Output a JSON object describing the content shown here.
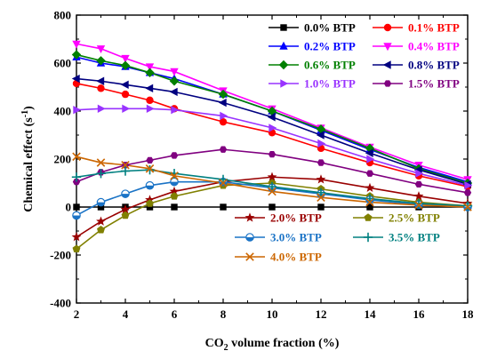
{
  "chart_data": {
    "type": "line",
    "xlabel": "CO2 volume fraction (%)",
    "ylabel": "Chemical effect (s-1)",
    "xlim": [
      2,
      18
    ],
    "ylim": [
      -400,
      800
    ],
    "xticks": [
      2,
      4,
      6,
      8,
      10,
      12,
      14,
      16,
      18
    ],
    "yticks": [
      -400,
      -200,
      0,
      200,
      400,
      600,
      800
    ],
    "x": [
      2,
      3,
      4,
      5,
      6,
      8,
      10,
      12,
      14,
      16,
      18
    ],
    "grid": false,
    "legend_position": "top-right and bottom-right",
    "series": [
      {
        "name": "0.0% BTP",
        "color": "#000000",
        "marker": "square",
        "values": [
          0,
          0,
          0,
          0,
          0,
          0,
          0,
          0,
          0,
          0,
          0
        ]
      },
      {
        "name": "0.1% BTP",
        "color": "#ff0000",
        "marker": "circle",
        "values": [
          515,
          495,
          470,
          445,
          410,
          355,
          310,
          245,
          185,
          130,
          85
        ]
      },
      {
        "name": "0.2% BTP",
        "color": "#0000ff",
        "marker": "triangle-up",
        "values": [
          625,
          600,
          585,
          560,
          535,
          470,
          400,
          320,
          240,
          165,
          105
        ]
      },
      {
        "name": "0.4% BTP",
        "color": "#ff00ff",
        "marker": "triangle-down",
        "values": [
          680,
          660,
          620,
          585,
          565,
          485,
          410,
          330,
          250,
          175,
          115
        ]
      },
      {
        "name": "0.6% BTP",
        "color": "#008000",
        "marker": "diamond",
        "values": [
          635,
          610,
          590,
          560,
          525,
          470,
          400,
          325,
          245,
          160,
          100
        ]
      },
      {
        "name": "0.8% BTP",
        "color": "#000080",
        "marker": "triangle-left",
        "values": [
          535,
          525,
          510,
          495,
          480,
          435,
          375,
          300,
          225,
          155,
          95
        ]
      },
      {
        "name": "1.0% BTP",
        "color": "#9933ff",
        "marker": "triangle-right",
        "values": [
          405,
          410,
          410,
          410,
          405,
          380,
          330,
          265,
          200,
          140,
          90
        ]
      },
      {
        "name": "1.5% BTP",
        "color": "#800080",
        "marker": "hexagon",
        "values": [
          105,
          145,
          175,
          195,
          215,
          240,
          220,
          185,
          140,
          95,
          60
        ]
      },
      {
        "name": "2.0% BTP",
        "color": "#990000",
        "marker": "star",
        "values": [
          -125,
          -60,
          -10,
          30,
          65,
          105,
          125,
          115,
          80,
          45,
          15
        ]
      },
      {
        "name": "2.5% BTP",
        "color": "#808000",
        "marker": "pentagon",
        "values": [
          -175,
          -95,
          -35,
          15,
          45,
          90,
          100,
          75,
          45,
          20,
          5
        ]
      },
      {
        "name": "3.0% BTP",
        "color": "#1a73c6",
        "marker": "circle-half",
        "values": [
          -35,
          20,
          55,
          90,
          105,
          105,
          80,
          55,
          30,
          10,
          0
        ]
      },
      {
        "name": "3.5% BTP",
        "color": "#008080",
        "marker": "plus",
        "values": [
          125,
          140,
          150,
          155,
          140,
          115,
          85,
          60,
          35,
          15,
          5
        ]
      },
      {
        "name": "4.0% BTP",
        "color": "#cc6600",
        "marker": "x",
        "values": [
          210,
          185,
          175,
          160,
          130,
          100,
          65,
          40,
          20,
          8,
          0
        ]
      }
    ]
  }
}
